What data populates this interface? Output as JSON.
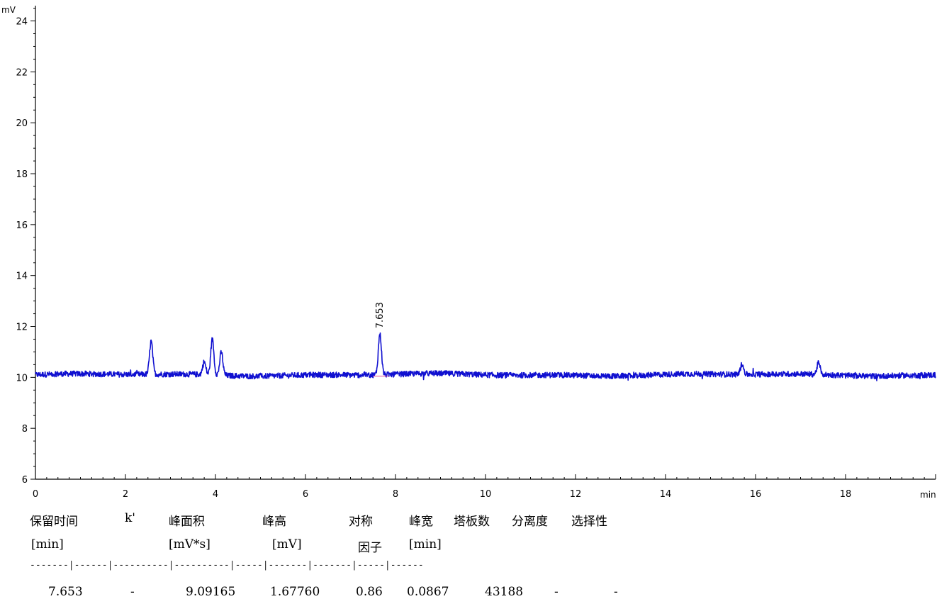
{
  "chart_data": {
    "type": "line",
    "xlabel": "min",
    "ylabel": "mV",
    "xlim": [
      0,
      20
    ],
    "ylim": [
      6,
      24.6
    ],
    "x_ticks": [
      0,
      2,
      4,
      6,
      8,
      10,
      12,
      14,
      16,
      18
    ],
    "y_ticks": [
      6,
      8,
      10,
      12,
      14,
      16,
      18,
      20,
      22,
      24
    ],
    "grid": false,
    "legend": "none",
    "series": [
      {
        "color": "#1010d0",
        "baseline": 10.1,
        "peaks": [
          {
            "x": 2.57,
            "y": 11.4
          },
          {
            "x": 3.75,
            "y": 10.6
          },
          {
            "x": 3.93,
            "y": 11.5
          },
          {
            "x": 4.13,
            "y": 11.0
          },
          {
            "x": 7.653,
            "y": 11.7
          },
          {
            "x": 15.7,
            "y": 10.5
          },
          {
            "x": 17.4,
            "y": 10.55
          }
        ]
      }
    ],
    "annotations": [
      {
        "x": 7.653,
        "y": 11.7,
        "text": "7.653"
      }
    ],
    "integration_baseline": {
      "x_start": 7.5,
      "x_end": 7.85,
      "y": 10.05,
      "color": "#e060a0"
    }
  },
  "results_table": {
    "headers": [
      {
        "line1": "保留时间",
        "line2": "[min]"
      },
      {
        "line1": "k'",
        "line2": ""
      },
      {
        "line1": "峰面积",
        "line2": "[mV*s]"
      },
      {
        "line1": "峰高",
        "line2": "[mV]"
      },
      {
        "line1": "对称",
        "line2": "因子"
      },
      {
        "line1": "峰宽",
        "line2": "[min]"
      },
      {
        "line1": "塔板数",
        "line2": ""
      },
      {
        "line1": "分离度",
        "line2": ""
      },
      {
        "line1": "选择性",
        "line2": ""
      }
    ],
    "separator": "-------|------|----------|----------|-----|-------|-------|-----|------",
    "rows": [
      [
        "7.653",
        "-",
        "9.09165",
        "1.67760",
        "0.86",
        "0.0867",
        "43188",
        "-",
        "-"
      ]
    ]
  }
}
